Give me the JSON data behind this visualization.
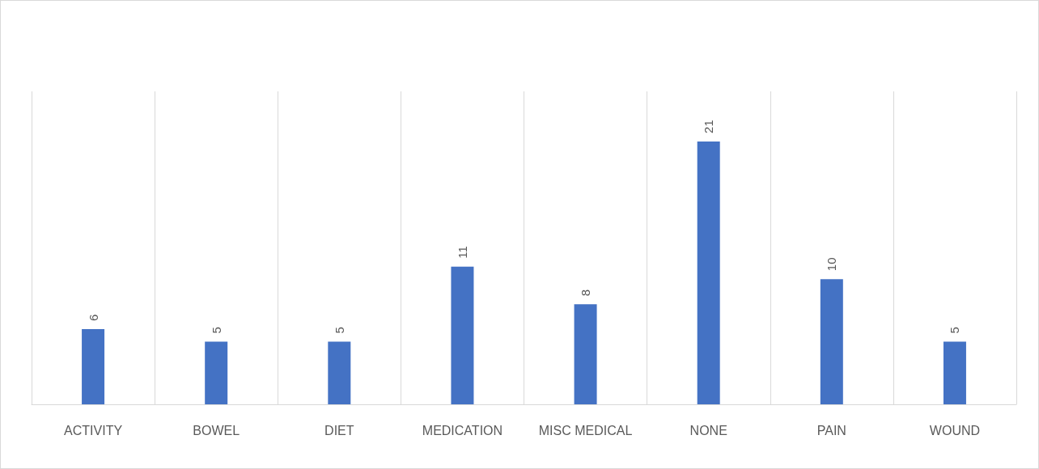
{
  "chart_data": {
    "type": "bar",
    "categories": [
      "ACTIVITY",
      "BOWEL",
      "DIET",
      "MEDICATION",
      "MISC MEDICAL",
      "NONE",
      "PAIN",
      "WOUND"
    ],
    "values": [
      6,
      5,
      5,
      11,
      8,
      21,
      10,
      5
    ],
    "color": "#4472c4",
    "data_labels": true,
    "grid": "x"
  }
}
